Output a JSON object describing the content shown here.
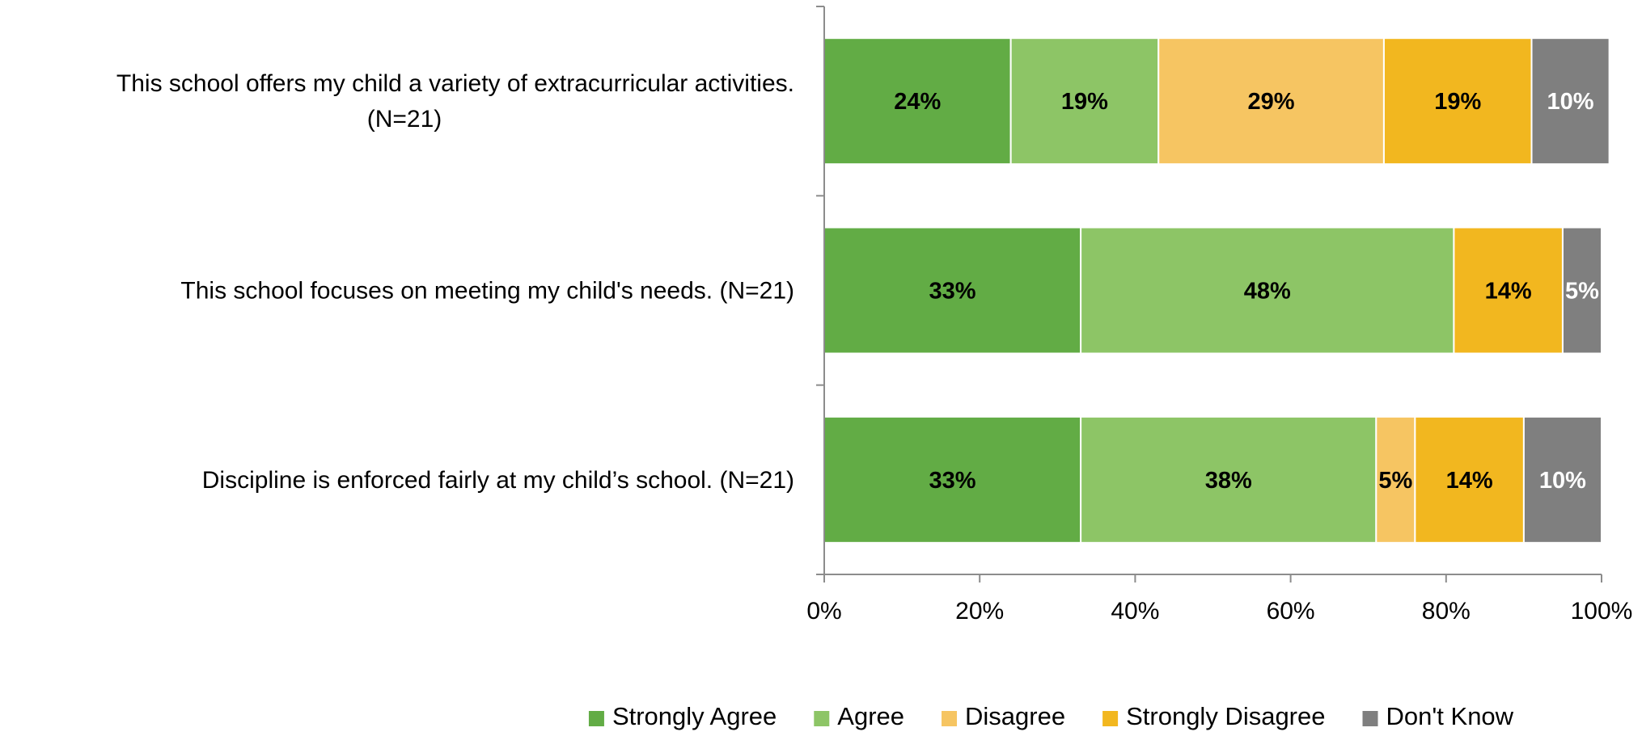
{
  "chart_data": {
    "type": "bar",
    "orientation": "horizontal",
    "stacked": true,
    "categories": [
      "This school offers my child a variety of extracurricular activities. (N=21)",
      "This school focuses on meeting my child's needs. (N=21)",
      "Discipline is enforced fairly at my child’s school. (N=21)"
    ],
    "category_lines": [
      [
        "This school offers my child a variety of extracurricular activities.",
        "(N=21)"
      ],
      [
        "This school focuses on meeting my child's needs. (N=21)"
      ],
      [
        "Discipline is enforced fairly at my child’s school. (N=21)"
      ]
    ],
    "series": [
      {
        "name": "Strongly Agree",
        "color": "#62AC45",
        "label_color": "#000000",
        "values": [
          24,
          33,
          33
        ],
        "labels": [
          "24%",
          "33%",
          "33%"
        ]
      },
      {
        "name": "Agree",
        "color": "#8DC566",
        "label_color": "#000000",
        "values": [
          19,
          48,
          38
        ],
        "labels": [
          "19%",
          "48%",
          "38%"
        ]
      },
      {
        "name": "Disagree",
        "color": "#F6C562",
        "label_color": "#000000",
        "values": [
          29,
          0,
          5
        ],
        "labels": [
          "29%",
          "",
          "5%"
        ]
      },
      {
        "name": "Strongly Disagree",
        "color": "#F2B71F",
        "label_color": "#000000",
        "values": [
          19,
          14,
          14
        ],
        "labels": [
          "19%",
          "14%",
          "14%"
        ]
      },
      {
        "name": "Don't Know",
        "color": "#7F7F7F",
        "label_color": "#FFFFFF",
        "values": [
          10,
          5,
          10
        ],
        "labels": [
          "10%",
          "5%",
          "10%"
        ]
      }
    ],
    "xlim": [
      0,
      100
    ],
    "x_ticks": [
      0,
      20,
      40,
      60,
      80,
      100
    ],
    "x_tick_labels": [
      "0%",
      "20%",
      "40%",
      "60%",
      "80%",
      "100%"
    ],
    "title": "",
    "xlabel": "",
    "ylabel": "",
    "grid": false,
    "legend_position": "bottom"
  }
}
